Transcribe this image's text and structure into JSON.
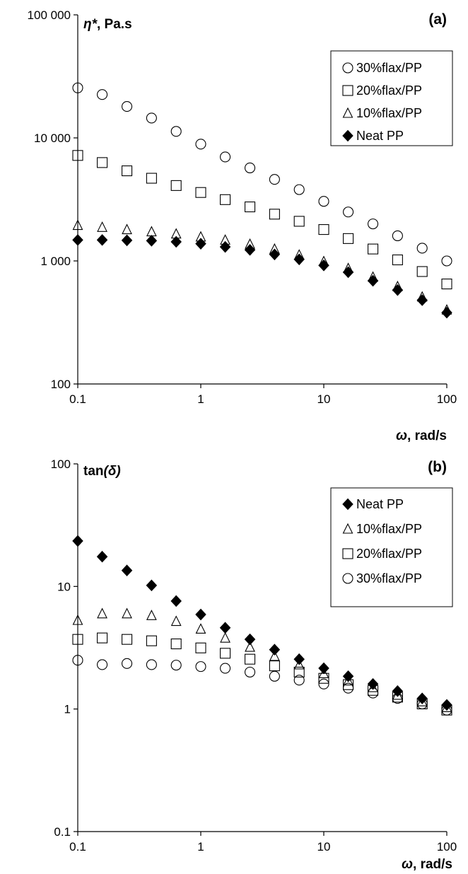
{
  "chart_data": [
    {
      "type": "scatter",
      "panel_label": "(a)",
      "ylabel_symbol": "η*",
      "ylabel_unit": ", Pa.s",
      "xlabel_symbol": "ω",
      "xlabel_unit": ", rad/s",
      "xscale": "log",
      "yscale": "log",
      "xlim": [
        0.1,
        100
      ],
      "ylim": [
        100,
        100000
      ],
      "xticks": [
        "0.1",
        "1",
        "10",
        "100"
      ],
      "yticks": [
        "100",
        "1 000",
        "10 000",
        "100 000"
      ],
      "grid": false,
      "legend_position": "top-right",
      "legend_order": [
        "30%flax/PP",
        "20%flax/PP",
        "10%flax/PP",
        "Neat PP"
      ],
      "x": [
        0.1,
        0.158,
        0.251,
        0.398,
        0.631,
        1,
        1.58,
        2.51,
        3.98,
        6.31,
        10,
        15.8,
        25.1,
        39.8,
        63.1,
        100
      ],
      "series": [
        {
          "name": "30%flax/PP",
          "marker": "circle",
          "values": [
            25500,
            22500,
            18000,
            14500,
            11300,
            8900,
            7000,
            5700,
            4600,
            3800,
            3050,
            2500,
            2000,
            1600,
            1270,
            1000
          ]
        },
        {
          "name": "20%flax/PP",
          "marker": "square",
          "values": [
            7200,
            6300,
            5400,
            4700,
            4100,
            3600,
            3150,
            2750,
            2400,
            2100,
            1800,
            1520,
            1250,
            1020,
            820,
            650
          ]
        },
        {
          "name": "10%flax/PP",
          "marker": "triangle",
          "values": [
            1950,
            1880,
            1800,
            1730,
            1660,
            1570,
            1480,
            1370,
            1250,
            1120,
            990,
            870,
            740,
            620,
            510,
            400
          ]
        },
        {
          "name": "Neat PP",
          "marker": "diamond",
          "values": [
            1480,
            1480,
            1470,
            1460,
            1430,
            1380,
            1300,
            1230,
            1130,
            1030,
            920,
            810,
            690,
            580,
            480,
            380
          ]
        }
      ]
    },
    {
      "type": "scatter",
      "panel_label": "(b)",
      "ylabel_prefix": "tan",
      "ylabel_symbol": "(δ)",
      "xlabel_symbol": "ω",
      "xlabel_unit": ", rad/s",
      "xscale": "log",
      "yscale": "log",
      "xlim": [
        0.1,
        100
      ],
      "ylim": [
        0.1,
        100
      ],
      "xticks": [
        "0.1",
        "1",
        "10",
        "100"
      ],
      "yticks": [
        "0.1",
        "1",
        "10",
        "100"
      ],
      "grid": false,
      "legend_position": "top-right",
      "legend_order": [
        "Neat PP",
        "10%flax/PP",
        "20%flax/PP",
        "30%flax/PP"
      ],
      "x": [
        0.1,
        0.158,
        0.251,
        0.398,
        0.631,
        1,
        1.58,
        2.51,
        3.98,
        6.31,
        10,
        15.8,
        25.1,
        39.8,
        63.1,
        100
      ],
      "series": [
        {
          "name": "Neat PP",
          "marker": "diamond",
          "values": [
            23.5,
            17.5,
            13.5,
            10.2,
            7.6,
            5.9,
            4.6,
            3.7,
            3.05,
            2.55,
            2.15,
            1.85,
            1.6,
            1.4,
            1.22,
            1.08
          ]
        },
        {
          "name": "10%flax/PP",
          "marker": "triangle",
          "values": [
            5.3,
            6.0,
            6.0,
            5.8,
            5.2,
            4.5,
            3.8,
            3.2,
            2.7,
            2.3,
            1.95,
            1.7,
            1.5,
            1.3,
            1.15,
            1.03
          ]
        },
        {
          "name": "20%flax/PP",
          "marker": "square",
          "values": [
            3.7,
            3.8,
            3.7,
            3.6,
            3.4,
            3.15,
            2.85,
            2.55,
            2.25,
            2.0,
            1.78,
            1.58,
            1.42,
            1.25,
            1.1,
            0.98
          ]
        },
        {
          "name": "30%flax/PP",
          "marker": "circle",
          "values": [
            2.5,
            2.3,
            2.35,
            2.3,
            2.28,
            2.22,
            2.15,
            2.0,
            1.85,
            1.72,
            1.6,
            1.48,
            1.35,
            1.22,
            1.1,
            0.98
          ]
        }
      ]
    }
  ]
}
